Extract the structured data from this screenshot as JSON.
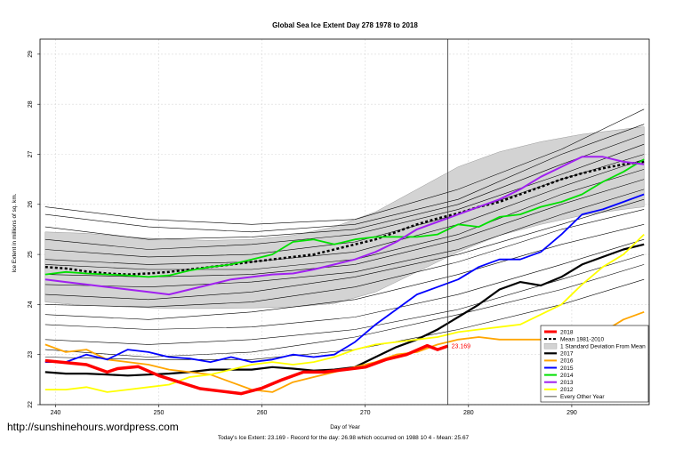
{
  "chart_data": {
    "type": "line",
    "title": "Global Sea Ice Extent Day 278 1978 to 2018",
    "xlabel": "Day of Year",
    "ylabel": "Ice Extent in millions of sq. km.",
    "xlim": [
      238.5,
      297.5
    ],
    "ylim": [
      22,
      29.3
    ],
    "x_ticks": [
      240,
      250,
      260,
      270,
      280,
      290
    ],
    "y_ticks": [
      22,
      23,
      24,
      25,
      26,
      27,
      28,
      29
    ],
    "grid": true,
    "vline_day": 278,
    "current_label": "23.169",
    "legend": {
      "placement": "bottom-right",
      "entries": [
        "2018",
        "Mean 1981-2010",
        "1 Standard Deviation From Mean",
        "2017",
        "2016",
        "2015",
        "2014",
        "2013",
        "2012",
        "Every Other Year"
      ]
    },
    "band": {
      "name": "1 Standard Deviation From Mean",
      "color": "#d3d3d3",
      "x": [
        239,
        243,
        247,
        251,
        255,
        259,
        263,
        267,
        271,
        275,
        279,
        283,
        287,
        291,
        295,
        297
      ],
      "lower": [
        24.05,
        23.98,
        23.95,
        23.92,
        23.92,
        23.93,
        23.95,
        24.02,
        24.25,
        24.65,
        25.05,
        25.38,
        25.6,
        25.78,
        25.9,
        25.95
      ],
      "upper": [
        25.45,
        25.42,
        25.35,
        25.3,
        25.28,
        25.3,
        25.38,
        25.55,
        25.85,
        26.3,
        26.75,
        27.05,
        27.25,
        27.4,
        27.5,
        27.55
      ]
    },
    "series": [
      {
        "name": "2018",
        "color": "#ff0000",
        "width": 3.5,
        "dash": "",
        "x": [
          239,
          241,
          243,
          245,
          246,
          248,
          250,
          252,
          254,
          256,
          258,
          260,
          262,
          264,
          266,
          268,
          270,
          272,
          274,
          276,
          277,
          278
        ],
        "y": [
          22.88,
          22.84,
          22.8,
          22.65,
          22.72,
          22.76,
          22.58,
          22.45,
          22.32,
          22.27,
          22.22,
          22.33,
          22.5,
          22.65,
          22.65,
          22.7,
          22.75,
          22.9,
          23.0,
          23.18,
          23.1,
          23.17
        ]
      },
      {
        "name": "Mean 1981-2010",
        "color": "#000000",
        "width": 2.5,
        "dash": "3,2.5",
        "x": [
          239,
          241,
          243,
          245,
          247,
          249,
          251,
          253,
          255,
          257,
          259,
          261,
          263,
          265,
          267,
          269,
          271,
          273,
          275,
          277,
          279,
          281,
          283,
          285,
          287,
          289,
          291,
          293,
          295,
          297
        ],
        "y": [
          24.75,
          24.72,
          24.66,
          24.62,
          24.6,
          24.62,
          24.65,
          24.7,
          24.75,
          24.8,
          24.85,
          24.9,
          24.95,
          25.0,
          25.1,
          25.2,
          25.3,
          25.45,
          25.6,
          25.72,
          25.82,
          25.95,
          26.05,
          26.2,
          26.35,
          26.5,
          26.62,
          26.72,
          26.8,
          26.85
        ]
      },
      {
        "name": "2017",
        "color": "#000000",
        "width": 2.2,
        "dash": "",
        "x": [
          239,
          241,
          243,
          245,
          247,
          249,
          251,
          253,
          255,
          257,
          259,
          261,
          263,
          265,
          267,
          269,
          271,
          273,
          275,
          277,
          279,
          281,
          283,
          285,
          287,
          289,
          291,
          293,
          295,
          297
        ],
        "y": [
          22.65,
          22.62,
          22.62,
          22.6,
          22.58,
          22.6,
          22.62,
          22.65,
          22.7,
          22.7,
          22.7,
          22.75,
          22.72,
          22.68,
          22.7,
          22.75,
          22.95,
          23.15,
          23.3,
          23.5,
          23.75,
          24.0,
          24.3,
          24.45,
          24.38,
          24.55,
          24.8,
          24.95,
          25.1,
          25.2
        ]
      },
      {
        "name": "2016",
        "color": "#ffa500",
        "width": 1.8,
        "dash": "",
        "x": [
          239,
          241,
          243,
          245,
          247,
          249,
          251,
          253,
          255,
          257,
          259,
          261,
          263,
          265,
          267,
          269,
          271,
          273,
          275,
          277,
          279,
          281,
          283,
          285,
          287,
          289,
          291,
          293,
          295,
          297
        ],
        "y": [
          23.2,
          23.05,
          23.1,
          22.9,
          22.85,
          22.8,
          22.7,
          22.65,
          22.6,
          22.45,
          22.3,
          22.25,
          22.45,
          22.55,
          22.65,
          22.75,
          22.85,
          23.0,
          23.05,
          23.2,
          23.3,
          23.35,
          23.3,
          23.3,
          23.3,
          23.35,
          23.35,
          23.45,
          23.7,
          23.85
        ]
      },
      {
        "name": "2015",
        "color": "#0000ff",
        "width": 1.8,
        "dash": "",
        "x": [
          239,
          241,
          243,
          245,
          247,
          249,
          251,
          253,
          255,
          257,
          259,
          261,
          263,
          265,
          267,
          269,
          271,
          273,
          275,
          277,
          279,
          281,
          283,
          285,
          287,
          289,
          291,
          293,
          295,
          297
        ],
        "y": [
          22.85,
          22.85,
          23.0,
          22.9,
          23.1,
          23.05,
          22.95,
          22.92,
          22.85,
          22.95,
          22.85,
          22.9,
          23.0,
          22.95,
          23.0,
          23.25,
          23.6,
          23.9,
          24.2,
          24.35,
          24.5,
          24.75,
          24.9,
          24.9,
          25.05,
          25.4,
          25.8,
          25.9,
          26.05,
          26.2
        ]
      },
      {
        "name": "2014",
        "color": "#00e000",
        "width": 1.8,
        "dash": "",
        "x": [
          239,
          241,
          243,
          245,
          247,
          249,
          251,
          253,
          255,
          257,
          259,
          261,
          263,
          265,
          267,
          269,
          271,
          273,
          275,
          277,
          279,
          281,
          283,
          285,
          287,
          289,
          291,
          293,
          295,
          297
        ],
        "y": [
          24.6,
          24.65,
          24.62,
          24.6,
          24.58,
          24.55,
          24.58,
          24.68,
          24.75,
          24.8,
          24.9,
          25.0,
          25.25,
          25.3,
          25.2,
          25.3,
          25.35,
          25.35,
          25.35,
          25.4,
          25.6,
          25.55,
          25.75,
          25.8,
          25.95,
          26.05,
          26.2,
          26.45,
          26.65,
          26.9
        ]
      },
      {
        "name": "2013",
        "color": "#a020f0",
        "width": 2.0,
        "dash": "",
        "x": [
          239,
          241,
          243,
          245,
          247,
          249,
          251,
          253,
          255,
          257,
          259,
          261,
          263,
          265,
          267,
          269,
          271,
          273,
          275,
          277,
          279,
          281,
          283,
          285,
          287,
          289,
          291,
          293,
          295,
          297
        ],
        "y": [
          24.5,
          24.45,
          24.4,
          24.35,
          24.3,
          24.25,
          24.2,
          24.3,
          24.4,
          24.5,
          24.55,
          24.6,
          24.62,
          24.7,
          24.8,
          24.9,
          25.05,
          25.25,
          25.5,
          25.65,
          25.8,
          25.95,
          26.1,
          26.3,
          26.55,
          26.75,
          26.95,
          26.95,
          26.85,
          26.8
        ]
      },
      {
        "name": "2012",
        "color": "#ffff00",
        "width": 1.8,
        "dash": "",
        "x": [
          239,
          241,
          243,
          245,
          247,
          249,
          251,
          253,
          255,
          257,
          259,
          261,
          263,
          265,
          267,
          269,
          271,
          273,
          275,
          277,
          279,
          281,
          283,
          285,
          287,
          289,
          291,
          293,
          295,
          297
        ],
        "y": [
          22.3,
          22.3,
          22.35,
          22.25,
          22.3,
          22.35,
          22.4,
          22.55,
          22.6,
          22.7,
          22.8,
          22.85,
          22.8,
          22.85,
          22.95,
          23.1,
          23.2,
          23.25,
          23.3,
          23.35,
          23.45,
          23.5,
          23.55,
          23.6,
          23.8,
          24.0,
          24.4,
          24.75,
          25.0,
          25.4
        ]
      }
    ],
    "other_years": [
      {
        "name": "Every Other Year",
        "color": "#000000",
        "width": 0.6,
        "x": [
          239,
          249,
          259,
          269,
          279,
          289,
          297
        ],
        "y": [
          25.95,
          25.7,
          25.6,
          25.7,
          26.3,
          27.1,
          27.9
        ]
      },
      {
        "name": "Every Other Year",
        "color": "#000000",
        "width": 0.6,
        "x": [
          239,
          249,
          259,
          269,
          279,
          289,
          297
        ],
        "y": [
          25.8,
          25.55,
          25.45,
          25.6,
          26.1,
          27.0,
          27.6
        ]
      },
      {
        "name": "Every Other Year",
        "color": "#000000",
        "width": 0.6,
        "x": [
          239,
          249,
          259,
          269,
          279,
          289,
          297
        ],
        "y": [
          25.55,
          25.3,
          25.35,
          25.5,
          26.0,
          26.8,
          27.4
        ]
      },
      {
        "name": "Every Other Year",
        "color": "#000000",
        "width": 0.6,
        "x": [
          239,
          249,
          259,
          269,
          279,
          289,
          297
        ],
        "y": [
          25.3,
          25.1,
          25.2,
          25.4,
          25.9,
          26.6,
          27.2
        ]
      },
      {
        "name": "Every Other Year",
        "color": "#000000",
        "width": 0.6,
        "x": [
          239,
          249,
          259,
          269,
          279,
          289,
          297
        ],
        "y": [
          25.1,
          24.95,
          25.0,
          25.25,
          25.8,
          26.5,
          27.0
        ]
      },
      {
        "name": "Every Other Year",
        "color": "#000000",
        "width": 0.6,
        "x": [
          239,
          249,
          259,
          269,
          279,
          289,
          297
        ],
        "y": [
          24.9,
          24.8,
          24.85,
          25.05,
          25.6,
          26.35,
          26.9
        ]
      },
      {
        "name": "Every Other Year",
        "color": "#000000",
        "width": 0.6,
        "x": [
          239,
          249,
          259,
          269,
          279,
          289,
          297
        ],
        "y": [
          24.8,
          24.7,
          24.7,
          24.9,
          25.4,
          26.2,
          26.7
        ]
      },
      {
        "name": "Every Other Year",
        "color": "#000000",
        "width": 0.6,
        "x": [
          239,
          249,
          259,
          269,
          279,
          289,
          297
        ],
        "y": [
          24.6,
          24.55,
          24.6,
          24.8,
          25.3,
          26.0,
          26.5
        ]
      },
      {
        "name": "Every Other Year",
        "color": "#000000",
        "width": 0.6,
        "x": [
          239,
          249,
          259,
          269,
          279,
          289,
          297
        ],
        "y": [
          24.4,
          24.35,
          24.45,
          24.65,
          25.1,
          25.8,
          26.3
        ]
      },
      {
        "name": "Every Other Year",
        "color": "#000000",
        "width": 0.6,
        "x": [
          239,
          249,
          259,
          269,
          279,
          289,
          297
        ],
        "y": [
          24.2,
          24.1,
          24.25,
          24.55,
          25.0,
          25.6,
          26.1
        ]
      },
      {
        "name": "Every Other Year",
        "color": "#000000",
        "width": 0.6,
        "x": [
          239,
          249,
          259,
          269,
          279,
          289,
          297
        ],
        "y": [
          24.0,
          23.95,
          24.05,
          24.35,
          24.85,
          25.5,
          25.9
        ]
      },
      {
        "name": "Every Other Year",
        "color": "#000000",
        "width": 0.6,
        "x": [
          239,
          249,
          259,
          269,
          279,
          289,
          297
        ],
        "y": [
          23.8,
          23.7,
          23.85,
          24.1,
          24.6,
          25.2,
          25.6
        ]
      },
      {
        "name": "Every Other Year",
        "color": "#000000",
        "width": 0.6,
        "x": [
          239,
          249,
          259,
          269,
          279,
          289,
          297
        ],
        "y": [
          23.6,
          23.5,
          23.55,
          23.75,
          24.2,
          24.8,
          25.3
        ]
      },
      {
        "name": "Every Other Year",
        "color": "#000000",
        "width": 0.6,
        "x": [
          239,
          249,
          259,
          269,
          279,
          289,
          297
        ],
        "y": [
          23.3,
          23.2,
          23.3,
          23.5,
          23.9,
          24.5,
          25.0
        ]
      },
      {
        "name": "Every Other Year",
        "color": "#000000",
        "width": 0.6,
        "x": [
          239,
          249,
          259,
          269,
          279,
          289,
          297
        ],
        "y": [
          23.1,
          22.95,
          23.05,
          23.35,
          23.8,
          24.3,
          24.8
        ]
      },
      {
        "name": "Every Other Year",
        "color": "#000000",
        "width": 0.6,
        "x": [
          239,
          249,
          259,
          269,
          279,
          289,
          297
        ],
        "y": [
          22.95,
          22.9,
          22.9,
          23.1,
          23.5,
          24.0,
          24.5
        ]
      }
    ]
  },
  "footer": {
    "url": "http://sunshinehours.wordpress.com",
    "stats": "Today's Ice Extent: 23.169  - Record for the day: 26.98 which occurred on 1988 10 4  - Mean: 25.67"
  }
}
